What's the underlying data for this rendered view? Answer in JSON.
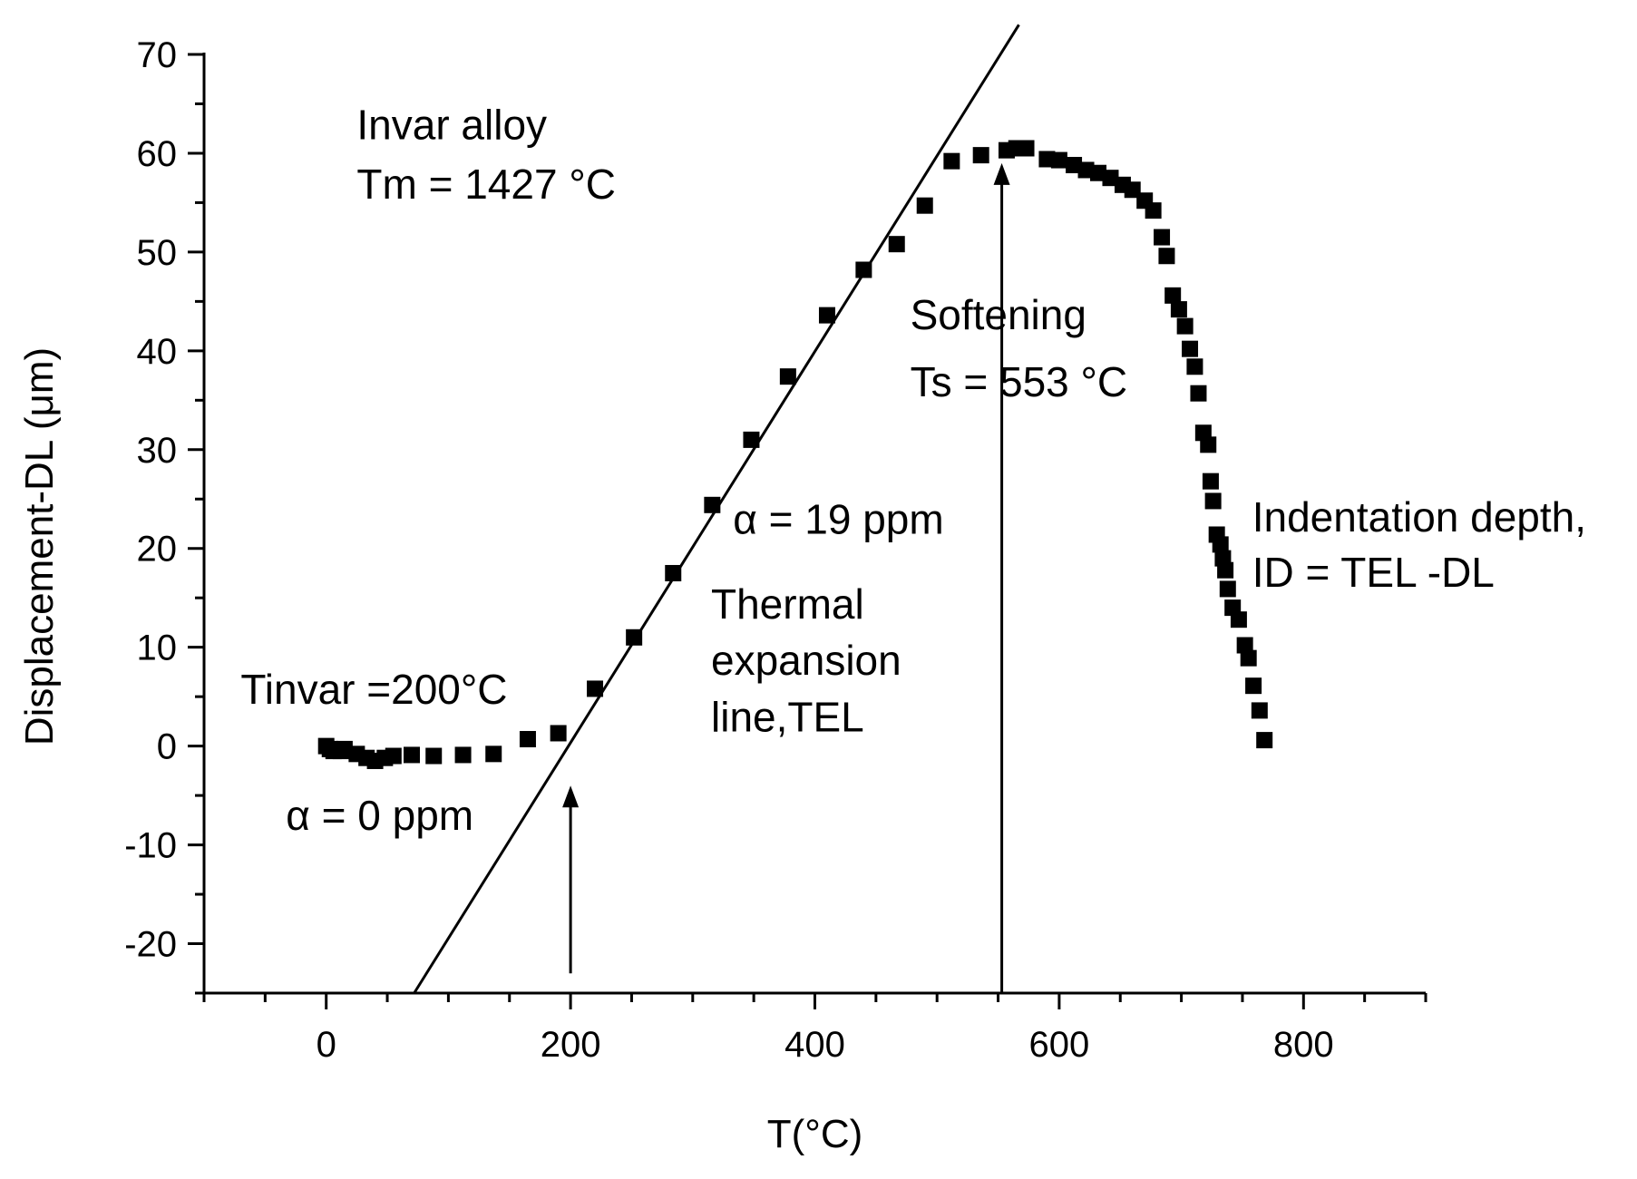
{
  "chart_data": {
    "type": "scatter",
    "xlabel": "T(°C)",
    "ylabel": "Displacement-DL (μm)",
    "xlim": [
      -100,
      900
    ],
    "ylim": [
      -25,
      70
    ],
    "x_ticks": [
      0,
      200,
      400,
      600,
      800
    ],
    "y_ticks": [
      -20,
      -10,
      0,
      10,
      20,
      30,
      40,
      50,
      60,
      70
    ],
    "x_tick_labels": [
      "0",
      "200",
      "400",
      "600",
      "800"
    ],
    "y_tick_labels": [
      "-20",
      "-10",
      "0",
      "10",
      "20",
      "30",
      "40",
      "50",
      "60",
      "70"
    ],
    "grid": false,
    "series": [
      {
        "name": "Displacement-DL",
        "marker": "square",
        "points": [
          [
            0,
            0
          ],
          [
            3,
            -0.3
          ],
          [
            6,
            -0.5
          ],
          [
            9,
            -0.4
          ],
          [
            12,
            -0.5
          ],
          [
            15,
            -0.3
          ],
          [
            25,
            -0.8
          ],
          [
            33,
            -1.2
          ],
          [
            40,
            -1.5
          ],
          [
            48,
            -1.2
          ],
          [
            55,
            -1.0
          ],
          [
            70,
            -0.9
          ],
          [
            88,
            -1.0
          ],
          [
            112,
            -0.9
          ],
          [
            137,
            -0.8
          ],
          [
            165,
            0.7
          ],
          [
            190,
            1.3
          ],
          [
            220,
            5.8
          ],
          [
            252,
            11.0
          ],
          [
            284,
            17.5
          ],
          [
            316,
            24.4
          ],
          [
            348,
            31.0
          ],
          [
            378,
            37.4
          ],
          [
            410,
            43.6
          ],
          [
            440,
            48.2
          ],
          [
            467,
            50.8
          ],
          [
            490,
            54.7
          ],
          [
            512,
            59.2
          ],
          [
            536,
            59.8
          ],
          [
            557,
            60.3
          ],
          [
            565,
            60.5
          ],
          [
            573,
            60.5
          ],
          [
            590,
            59.4
          ],
          [
            600,
            59.3
          ],
          [
            612,
            58.8
          ],
          [
            622,
            58.3
          ],
          [
            632,
            58.0
          ],
          [
            642,
            57.5
          ],
          [
            652,
            56.8
          ],
          [
            660,
            56.3
          ],
          [
            670,
            55.2
          ],
          [
            677,
            54.2
          ],
          [
            684,
            51.5
          ],
          [
            688,
            49.6
          ],
          [
            693,
            45.6
          ],
          [
            698,
            44.2
          ],
          [
            703,
            42.5
          ],
          [
            707,
            40.2
          ],
          [
            711,
            38.4
          ],
          [
            714,
            35.7
          ],
          [
            718,
            31.7
          ],
          [
            722,
            30.5
          ],
          [
            724,
            26.8
          ],
          [
            726,
            24.8
          ],
          [
            729,
            21.4
          ],
          [
            732,
            20.4
          ],
          [
            734,
            19.0
          ],
          [
            736,
            17.8
          ],
          [
            738,
            15.9
          ],
          [
            742,
            14.0
          ],
          [
            747,
            12.8
          ],
          [
            752,
            10.2
          ],
          [
            755,
            8.9
          ],
          [
            759,
            6.1
          ],
          [
            764,
            3.6
          ],
          [
            768,
            0.6
          ]
        ]
      }
    ],
    "fit_line": {
      "label": "Thermal expansion line,TEL",
      "x1": 72,
      "y1": -25,
      "x2": 567,
      "y2": 73
    },
    "arrows": [
      {
        "x": 200,
        "y_from": -23,
        "y_to": -4
      },
      {
        "x": 553,
        "y_from": -25,
        "y_to": 59
      }
    ],
    "annotations": [
      {
        "id": "invar",
        "lines": [
          "Invar alloy"
        ],
        "x": 25,
        "y": 61.4
      },
      {
        "id": "tm",
        "lines": [
          "Tm = 1427 °C"
        ],
        "x": 25,
        "y": 55.4
      },
      {
        "id": "softening",
        "lines": [
          "Softening"
        ],
        "x": 478,
        "y": 42.2
      },
      {
        "id": "ts",
        "lines": [
          "Ts = 553 °C"
        ],
        "x": 478,
        "y": 35.4
      },
      {
        "id": "alpha19",
        "lines": [
          "α = 19 ppm"
        ],
        "x": 333,
        "y": 21.5
      },
      {
        "id": "thermal",
        "lines": [
          "Thermal",
          "expansion",
          "line,TEL"
        ],
        "x": 315,
        "y": 12.9,
        "line_step": 5.7
      },
      {
        "id": "tinvar",
        "lines": [
          "Tinvar =200°C"
        ],
        "x": -70,
        "y": 4.3
      },
      {
        "id": "alpha0",
        "lines": [
          "α = 0 ppm"
        ],
        "x": -33,
        "y": -8.5
      },
      {
        "id": "indentation",
        "lines": [
          "Indentation depth,",
          "ID = TEL -DL"
        ],
        "x": 758,
        "y": 21.7,
        "line_step": 5.6
      }
    ]
  }
}
